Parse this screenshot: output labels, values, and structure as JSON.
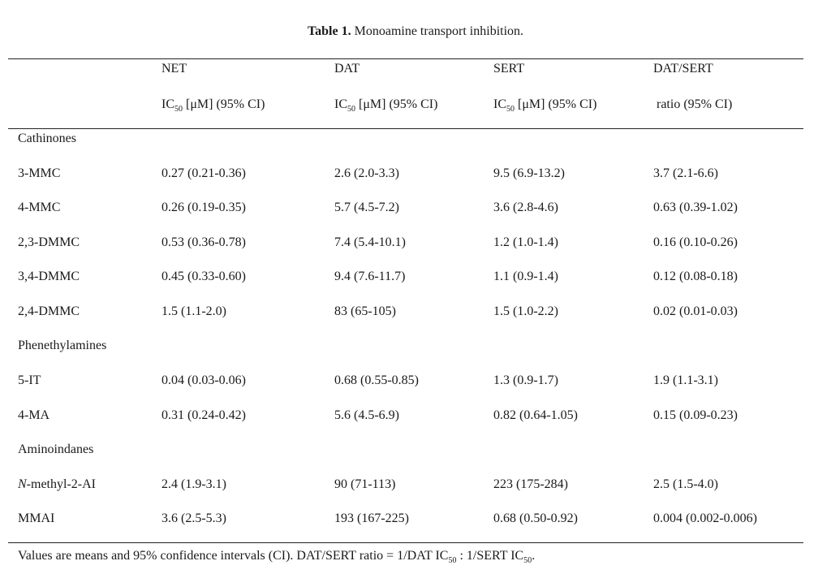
{
  "caption": {
    "label": "Table 1.",
    "text": "Monoamine transport inhibition."
  },
  "headers": {
    "row1": [
      "NET",
      "DAT",
      "SERT",
      "DAT/SERT"
    ],
    "row2_prefix": [
      "IC",
      "IC",
      "IC",
      ""
    ],
    "row2_sub": [
      "50",
      "50",
      "50",
      ""
    ],
    "row2_suffix": [
      " [μM] (95% CI)",
      " [μM] (95% CI)",
      " [μM] (95% CI)",
      "ratio (95% CI)"
    ]
  },
  "groups": [
    {
      "name": "Cathinones",
      "rows": [
        {
          "compound": "3-MMC",
          "net": "0.27 (0.21-0.36)",
          "dat": "2.6 (2.0-3.3)",
          "sert": "9.5 (6.9-13.2)",
          "ratio": "3.7 (2.1-6.6)"
        },
        {
          "compound": "4-MMC",
          "net": "0.26 (0.19-0.35)",
          "dat": "5.7 (4.5-7.2)",
          "sert": "3.6 (2.8-4.6)",
          "ratio": "0.63 (0.39-1.02)"
        },
        {
          "compound": "2,3-DMMC",
          "net": "0.53 (0.36-0.78)",
          "dat": "7.4 (5.4-10.1)",
          "sert": "1.2 (1.0-1.4)",
          "ratio": "0.16 (0.10-0.26)"
        },
        {
          "compound": "3,4-DMMC",
          "net": "0.45 (0.33-0.60)",
          "dat": "9.4 (7.6-11.7)",
          "sert": "1.1 (0.9-1.4)",
          "ratio": "0.12 (0.08-0.18)"
        },
        {
          "compound": "2,4-DMMC",
          "net": "1.5 (1.1-2.0)",
          "dat": "83 (65-105)",
          "sert": "1.5 (1.0-2.2)",
          "ratio": "0.02 (0.01-0.03)"
        }
      ]
    },
    {
      "name": "Phenethylamines",
      "rows": [
        {
          "compound": "5-IT",
          "net": "0.04 (0.03-0.06)",
          "dat": "0.68 (0.55-0.85)",
          "sert": "1.3 (0.9-1.7)",
          "ratio": "1.9 (1.1-3.1)"
        },
        {
          "compound": "4-MA",
          "net": "0.31 (0.24-0.42)",
          "dat": "5.6 (4.5-6.9)",
          "sert": "0.82 (0.64-1.05)",
          "ratio": "0.15 (0.09-0.23)"
        }
      ]
    },
    {
      "name": "Aminoindanes",
      "rows": [
        {
          "compound_italic": "N",
          "compound": "-methyl-2-AI",
          "net": "2.4 (1.9-3.1)",
          "dat": "90 (71-113)",
          "sert": "223 (175-284)",
          "ratio": "2.5 (1.5-4.0)"
        },
        {
          "compound": "MMAI",
          "net": "3.6 (2.5-5.3)",
          "dat": "193 (167-225)",
          "sert": "0.68 (0.50-0.92)",
          "ratio": "0.004 (0.002-0.006)"
        }
      ]
    }
  ],
  "footnote": {
    "part1": "Values are means and 95% confidence intervals (CI). DAT/SERT ratio = 1/DAT IC",
    "sub1": "50",
    "part2": " : 1/SERT IC",
    "sub2": "50",
    "part3": "."
  }
}
